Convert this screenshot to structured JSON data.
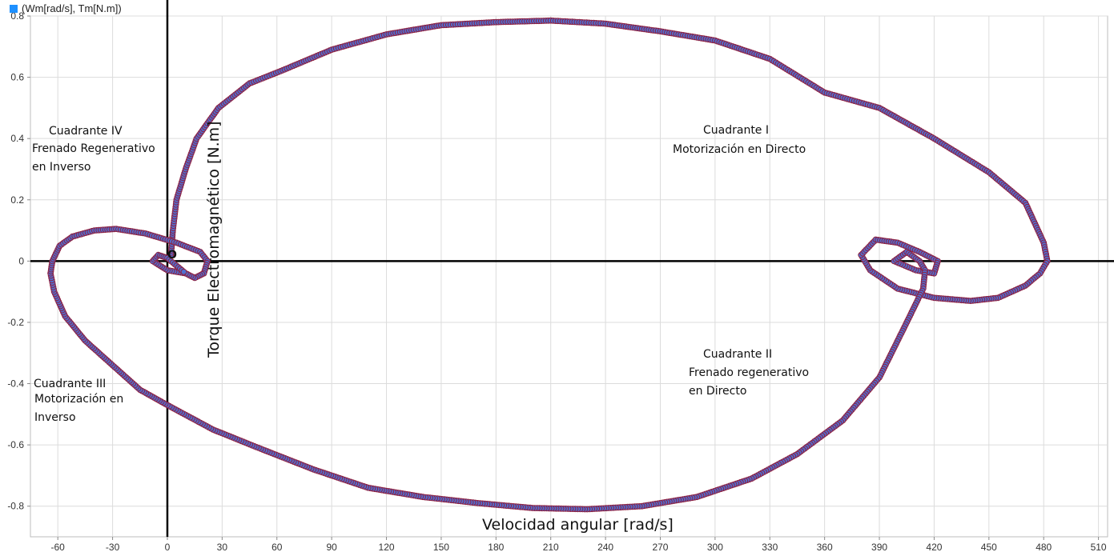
{
  "legend": {
    "label": "(Wm[rad/s], Tm[N.m])",
    "color": "#1e90ff"
  },
  "colors": {
    "point": "#4f6fd0",
    "outline": "#8e2040",
    "grid": "#dcdcdc",
    "axis": "#000000"
  },
  "chart_data": {
    "type": "scatter",
    "title": "",
    "xlabel": "Velocidad angular [rad/s]",
    "ylabel": "Torque Electromagnético [N.m]",
    "xlim": [
      -75,
      515
    ],
    "ylim": [
      -0.9,
      0.8
    ],
    "x_ticks": [
      -60,
      -30,
      0,
      30,
      60,
      90,
      120,
      150,
      180,
      210,
      240,
      270,
      300,
      330,
      360,
      390,
      420,
      450,
      480,
      510
    ],
    "y_ticks": [
      -0.8,
      -0.6,
      -0.4,
      -0.2,
      0,
      0.2,
      0.4,
      0.6,
      0.8
    ],
    "grid": true,
    "legend_position": "top-left",
    "origin_label": "O",
    "series": [
      {
        "name": "(Wm[rad/s], Tm[N.m])",
        "points": [
          [
            2,
            0.02
          ],
          [
            3,
            0.1
          ],
          [
            5,
            0.2
          ],
          [
            10,
            0.3
          ],
          [
            16,
            0.4
          ],
          [
            28,
            0.5
          ],
          [
            45,
            0.58
          ],
          [
            62,
            0.62
          ],
          [
            90,
            0.69
          ],
          [
            120,
            0.74
          ],
          [
            150,
            0.77
          ],
          [
            180,
            0.78
          ],
          [
            210,
            0.785
          ],
          [
            240,
            0.775
          ],
          [
            270,
            0.75
          ],
          [
            300,
            0.72
          ],
          [
            330,
            0.66
          ],
          [
            360,
            0.55
          ],
          [
            390,
            0.5
          ],
          [
            420,
            0.4
          ],
          [
            450,
            0.29
          ],
          [
            470,
            0.19
          ],
          [
            480,
            0.06
          ],
          [
            482,
            0.0
          ],
          [
            478,
            -0.04
          ],
          [
            470,
            -0.08
          ],
          [
            455,
            -0.12
          ],
          [
            440,
            -0.13
          ],
          [
            420,
            -0.12
          ],
          [
            400,
            -0.09
          ],
          [
            385,
            -0.03
          ],
          [
            380,
            0.02
          ],
          [
            388,
            0.07
          ],
          [
            400,
            0.06
          ],
          [
            412,
            0.03
          ],
          [
            422,
            0.0
          ],
          [
            420,
            -0.04
          ],
          [
            410,
            -0.03
          ],
          [
            398,
            0.0
          ],
          [
            405,
            0.03
          ],
          [
            412,
            0.0
          ],
          [
            415,
            -0.03
          ],
          [
            414,
            -0.09
          ],
          [
            405,
            -0.2
          ],
          [
            390,
            -0.38
          ],
          [
            370,
            -0.52
          ],
          [
            345,
            -0.63
          ],
          [
            320,
            -0.71
          ],
          [
            290,
            -0.77
          ],
          [
            260,
            -0.8
          ],
          [
            230,
            -0.81
          ],
          [
            200,
            -0.806
          ],
          [
            170,
            -0.79
          ],
          [
            140,
            -0.77
          ],
          [
            110,
            -0.74
          ],
          [
            80,
            -0.68
          ],
          [
            50,
            -0.61
          ],
          [
            25,
            -0.55
          ],
          [
            0,
            -0.47
          ],
          [
            -15,
            -0.42
          ],
          [
            -30,
            -0.34
          ],
          [
            -45,
            -0.26
          ],
          [
            -56,
            -0.18
          ],
          [
            -62,
            -0.1
          ],
          [
            -64,
            -0.04
          ],
          [
            -63,
            0.0
          ],
          [
            -59,
            0.05
          ],
          [
            -52,
            0.08
          ],
          [
            -40,
            0.1
          ],
          [
            -28,
            0.105
          ],
          [
            -12,
            0.09
          ],
          [
            5,
            0.06
          ],
          [
            18,
            0.03
          ],
          [
            22,
            0.0
          ],
          [
            20,
            -0.04
          ],
          [
            15,
            -0.055
          ],
          [
            10,
            -0.04
          ],
          [
            0,
            -0.03
          ],
          [
            -8,
            0.0
          ],
          [
            -5,
            0.02
          ],
          [
            0,
            0.01
          ],
          [
            6,
            -0.02
          ],
          [
            9,
            -0.035
          ]
        ]
      }
    ],
    "annotations": [
      {
        "id": "q1",
        "lines": [
          "Cuadrante I",
          "Motorización en Directo"
        ]
      },
      {
        "id": "q2",
        "lines": [
          "Cuadrante II",
          "Frenado regenerativo",
          "en Directo"
        ]
      },
      {
        "id": "q3",
        "lines": [
          "Cuadrante III",
          "Motorización en",
          "Inverso"
        ]
      },
      {
        "id": "q4",
        "lines": [
          "Cuadrante IV",
          "Frenado Regenerativo",
          "en Inverso"
        ]
      }
    ]
  }
}
